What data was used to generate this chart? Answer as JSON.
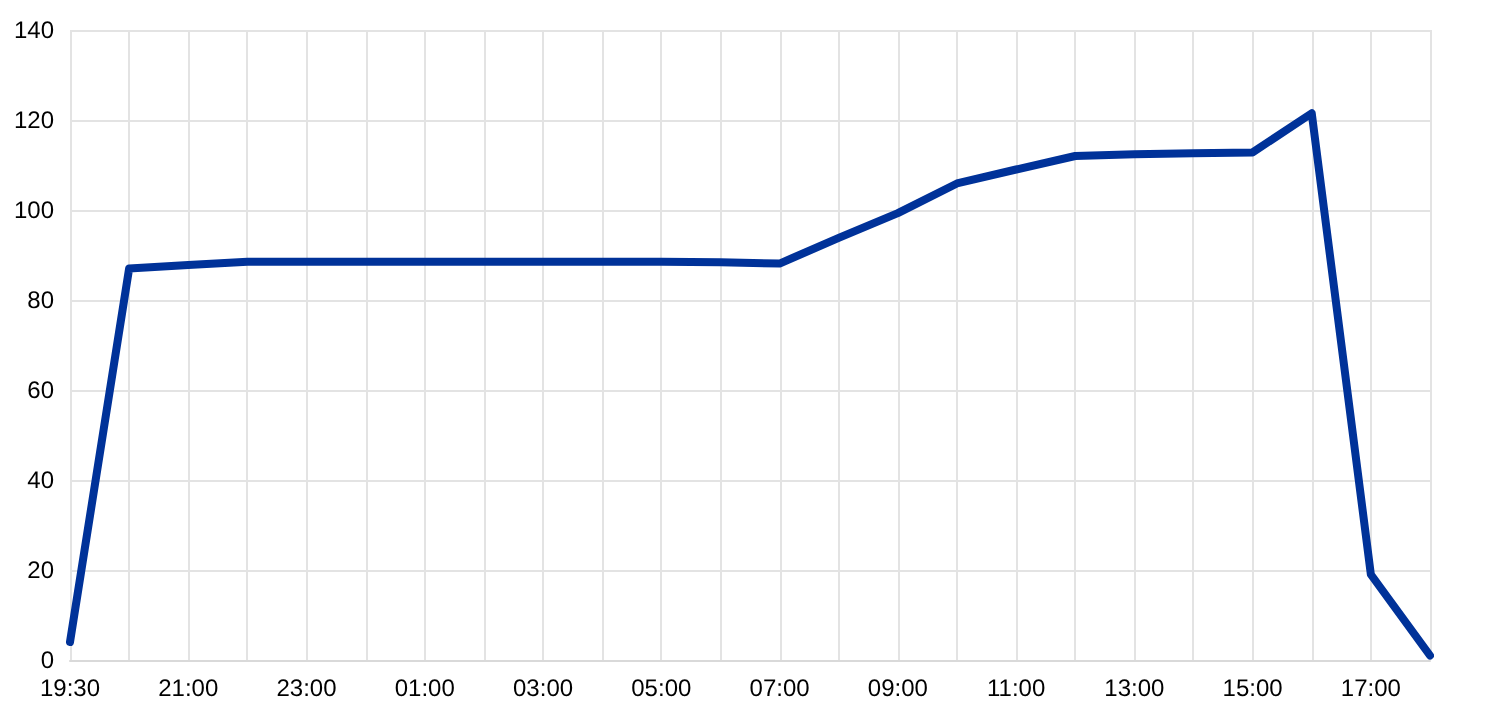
{
  "chart_data": {
    "type": "line",
    "categories": [
      "19:30",
      null,
      "21:00",
      null,
      "23:00",
      null,
      "01:00",
      null,
      "03:00",
      null,
      "05:00",
      null,
      "07:00",
      null,
      "09:00",
      null,
      "11:00",
      null,
      "13:00",
      null,
      "15:00",
      null,
      "17:00",
      null
    ],
    "series": [
      {
        "color": "#003299",
        "values": [
          4,
          87,
          87.8,
          88.5,
          88.5,
          88.5,
          88.5,
          88.5,
          88.5,
          88.5,
          88.5,
          88.4,
          88.1,
          93.8,
          99.3,
          105.9,
          109,
          112,
          112.4,
          112.6,
          112.8,
          121.5,
          19,
          1
        ]
      }
    ],
    "ylim": [
      0,
      140
    ],
    "yticks": [
      0,
      20,
      40,
      60,
      80,
      100,
      120,
      140
    ],
    "grid": true,
    "marker": "none",
    "line_style": "solid"
  }
}
